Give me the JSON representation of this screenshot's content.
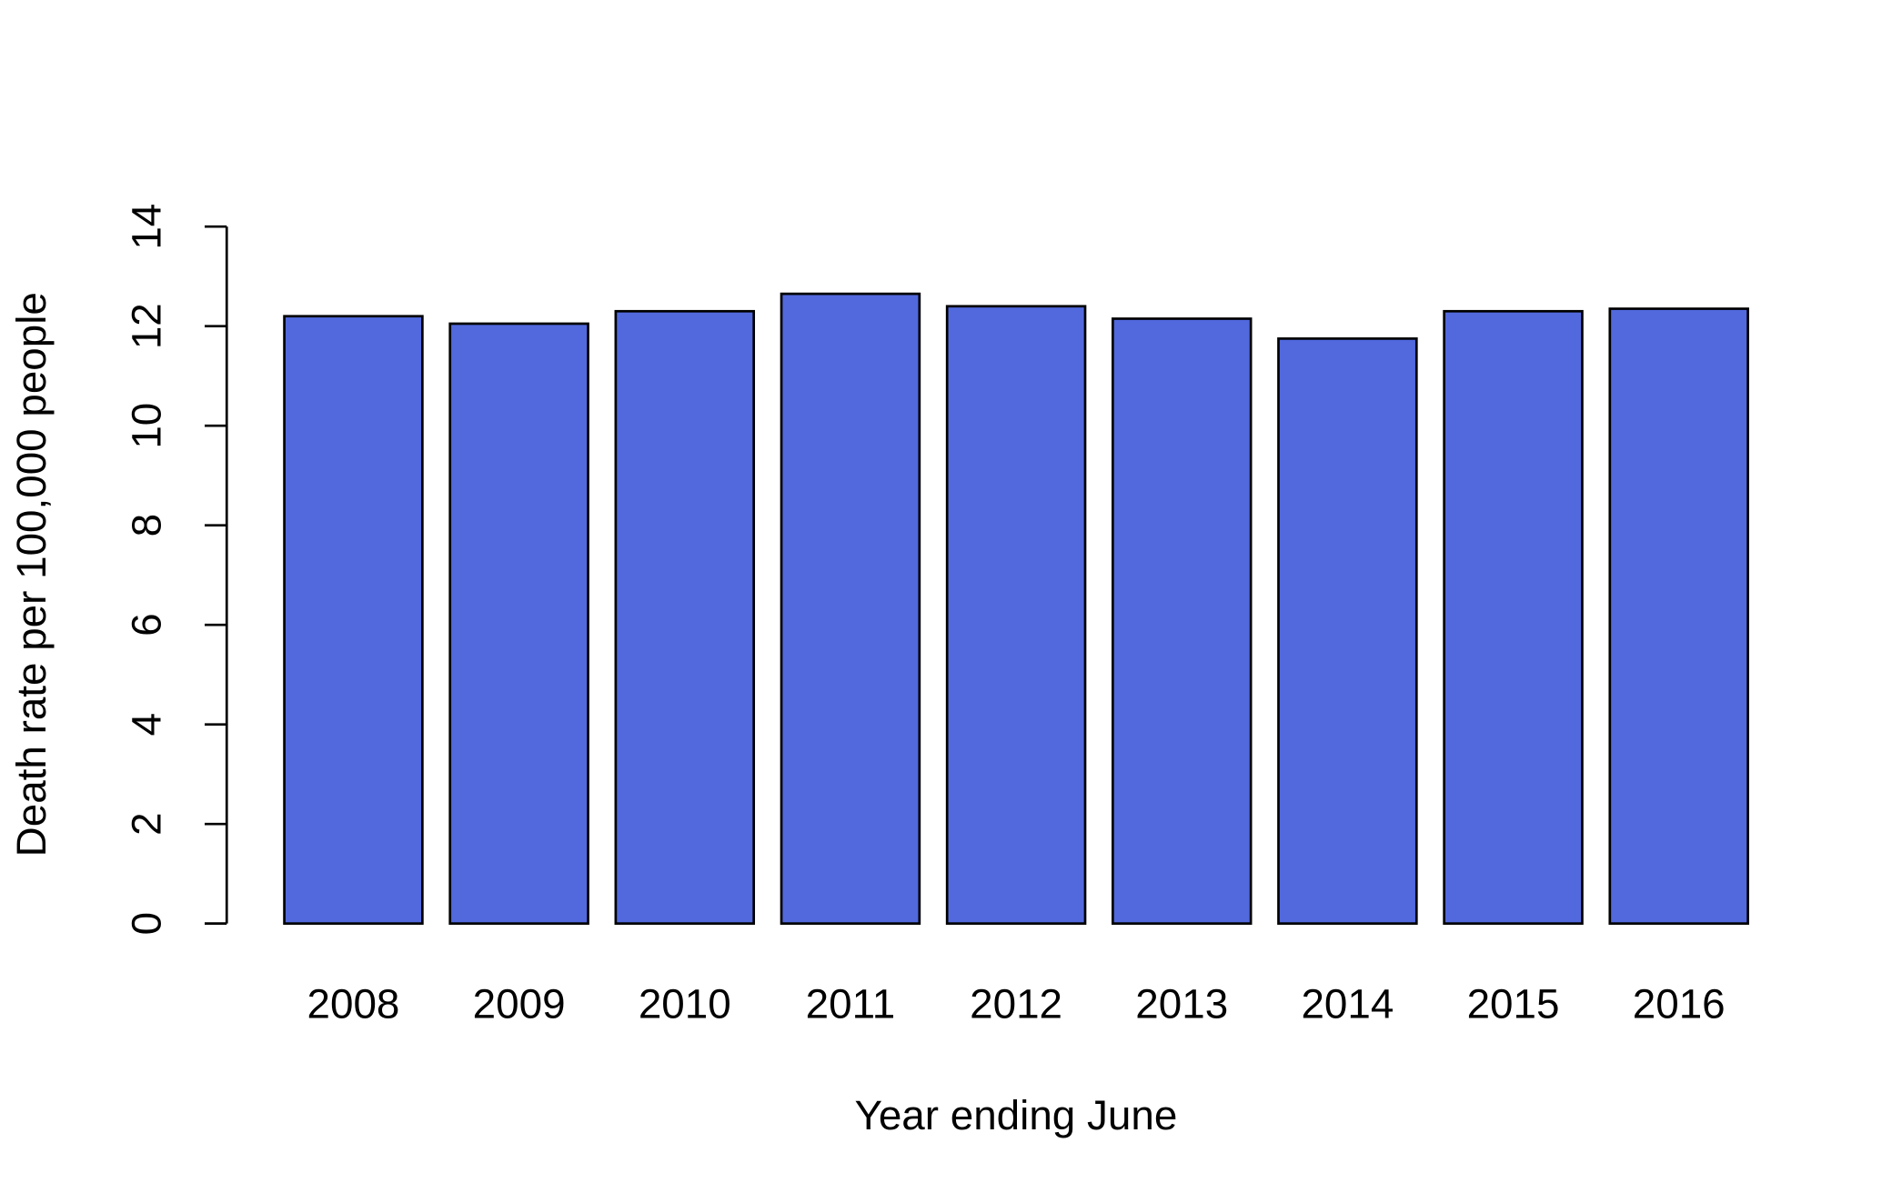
{
  "chart_data": {
    "type": "bar",
    "x_label": "Year ending June",
    "y_label": "Death rate per 100,000 people",
    "categories": [
      "2008",
      "2009",
      "2010",
      "2011",
      "2012",
      "2013",
      "2014",
      "2015",
      "2016"
    ],
    "values": [
      12.2,
      12.05,
      12.3,
      12.65,
      12.4,
      12.15,
      11.75,
      12.3,
      12.35
    ],
    "color": "#5169dd",
    "ylim": [
      0,
      14
    ],
    "yticks": [
      0,
      2,
      4,
      6,
      8,
      10,
      12,
      14
    ],
    "grid": false
  }
}
